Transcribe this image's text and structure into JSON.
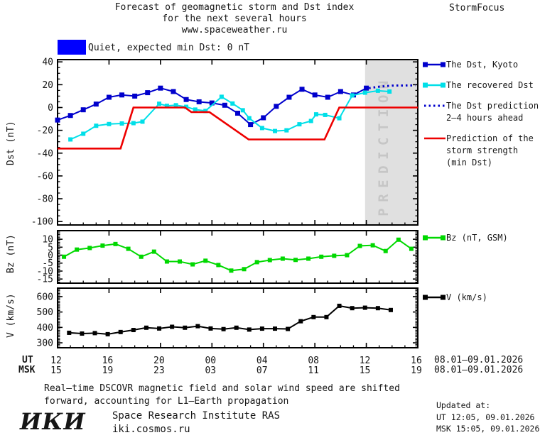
{
  "header": {
    "title_line1": "Forecast of geomagnetic storm and Dst index",
    "title_line2": "for the next several hours",
    "title_line3": "www.spaceweather.ru",
    "brand": "StormFocus"
  },
  "status_box": {
    "label": "Quiet, expected min Dst: 0 nT",
    "color": "#0000FF"
  },
  "legends": {
    "kyoto": "The Dst, Kyoto",
    "recovered": "The recovered Dst",
    "prediction_1": "The Dst prediction",
    "prediction_2": "2–4 hours ahead",
    "storm_1": "Prediction of the",
    "storm_2": "storm strength",
    "storm_3": "(min Dst)",
    "bz": "Bz (nT, GSM)",
    "v": "V (km/s)"
  },
  "axes": {
    "dst_label": "Dst (nT)",
    "bz_label": "Bz (nT)",
    "v_label": "V (km/s)",
    "ut_row_label": "UT",
    "msk_row_label": "MSK",
    "ut_hours": [
      "12",
      "16",
      "20",
      "00",
      "04",
      "08",
      "12",
      "16"
    ],
    "msk_hours": [
      "15",
      "19",
      "23",
      "03",
      "07",
      "11",
      "15",
      "19"
    ],
    "date_range": "08.01–09.01.2026"
  },
  "footer": {
    "note_line1": "Real–time DSCOVR magnetic field and solar wind speed are shifted",
    "note_line2": "forward, accounting for L1–Earth propagation",
    "logo": "ИКИ",
    "org": "Space Research Institute RAS",
    "site": "iki.cosmos.ru",
    "updated_label": "Updated at:",
    "updated_ut": "UT  12:05, 09.01.2026",
    "updated_msk": "MSK 15:05, 09.01.2026"
  },
  "chart_data": [
    {
      "type": "line",
      "title": "Dst index: observed, recovered and predicted",
      "ylabel": "Dst (nT)",
      "ylim": [
        -103,
        42
      ],
      "ytick_values": [
        40,
        20,
        0,
        -20,
        -40,
        -60,
        -80,
        -100
      ],
      "ytick_minor_step": 5,
      "x_axis": {
        "start_ut_hour": 12,
        "span_hours": 28,
        "major_tick_hours": [
          0,
          4,
          8,
          12,
          16,
          20,
          24,
          28
        ]
      },
      "prediction_zone": {
        "label": "PREDICTION",
        "t_start": 23.9,
        "t_end": 28,
        "fill": "#E0E0E0",
        "text_color": "#C6C6C6"
      },
      "series": [
        {
          "name": "The Dst, Kyoto",
          "color": "#0000CC",
          "style": "solid",
          "marker": true,
          "marker_size": 7,
          "t_start": 0,
          "t_step": 1,
          "values": [
            -11,
            -7,
            -2,
            3,
            9,
            11,
            10,
            13,
            17,
            14,
            7,
            5,
            4,
            2,
            -5,
            -15,
            -9,
            1,
            9,
            16,
            11,
            9,
            14,
            11,
            17
          ]
        },
        {
          "name": "The recovered Dst",
          "color": "#00DFE8",
          "style": "solid",
          "marker": true,
          "marker_size": 6,
          "t": [
            1,
            2,
            3,
            4,
            5,
            5.9,
            6.6,
            7.9,
            8.5,
            9.2,
            10,
            10.7,
            11.5,
            12.75,
            13.6,
            14.4,
            14.9,
            15.9,
            16.9,
            17.8,
            18.8,
            19.7,
            20.1,
            20.8,
            21.9,
            22.9,
            23.9,
            24.9,
            25.8
          ],
          "values": [
            -28,
            -23,
            -16,
            -14.5,
            -14,
            -13.7,
            -12.4,
            3.3,
            1.5,
            2,
            0.6,
            -1.8,
            -3,
            9.4,
            3.5,
            -2.4,
            -9.4,
            -18,
            -20.6,
            -20,
            -14.7,
            -11.8,
            -6,
            -6.5,
            -9.4,
            10.6,
            13,
            14.7,
            14
          ]
        },
        {
          "name": "The Dst prediction 2–4 hours ahead",
          "color": "#0000CC",
          "style": "dotted",
          "marker": false,
          "t": [
            24.2,
            25,
            26,
            27.8
          ],
          "values": [
            17,
            18.3,
            19.2,
            19.4
          ]
        },
        {
          "name": "Prediction of the storm strength (min Dst)",
          "color": "#EE0000",
          "style": "solid",
          "marker": false,
          "t": [
            0,
            4.9,
            5.9,
            9.9,
            10.4,
            11.8,
            14.85,
            20.75,
            21.9,
            28
          ],
          "values": [
            -36,
            -36,
            0,
            0,
            -4,
            -4,
            -28,
            -28,
            0,
            0
          ]
        }
      ]
    },
    {
      "type": "line",
      "title": "Bz component of interplanetary magnetic field",
      "ylabel": "Bz (nT)",
      "ylim": [
        -17.6,
        15.4
      ],
      "ytick_values": [
        10,
        5,
        0,
        -5,
        -10,
        -15
      ],
      "ytick_minor_step": 1,
      "series": [
        {
          "name": "Bz (nT, GSM)",
          "color": "#00D800",
          "style": "solid",
          "marker": true,
          "marker_size": 6,
          "t_start": 0.5,
          "t_step": 1,
          "values": [
            -1,
            3.5,
            4.5,
            6,
            7,
            4,
            -1,
            2.2,
            -4,
            -4,
            -5.8,
            -3.5,
            -6.2,
            -9.7,
            -8.8,
            -4.4,
            -3.1,
            -2.2,
            -3,
            -2.2,
            -1,
            -0.4,
            0,
            5.8,
            6.2,
            2.6,
            9.7,
            4
          ]
        }
      ]
    },
    {
      "type": "line",
      "title": "Solar wind speed",
      "ylabel": "V (km/s)",
      "ylim": [
        268,
        655
      ],
      "ytick_values": [
        600,
        500,
        400,
        300
      ],
      "ytick_minor_step": 10,
      "series": [
        {
          "name": "V (km/s)",
          "color": "#000000",
          "style": "solid",
          "marker": true,
          "marker_size": 6,
          "t_start": 0.9,
          "t_step": 1,
          "values": [
            365,
            360,
            363,
            356,
            370,
            383,
            398,
            393,
            404,
            398,
            408,
            393,
            389,
            398,
            386,
            392,
            392,
            390,
            440,
            467,
            467,
            540,
            525,
            528,
            525,
            513
          ]
        }
      ]
    }
  ]
}
